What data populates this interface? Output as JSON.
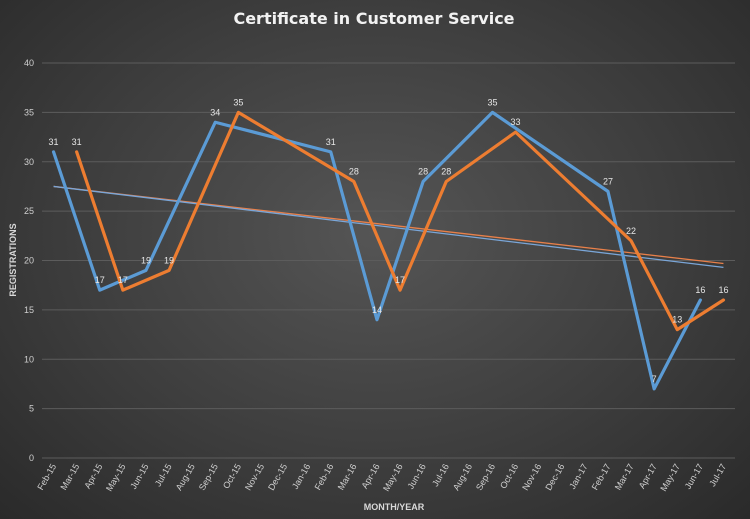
{
  "chart_data": {
    "type": "line",
    "title": "Certificate in Customer Service",
    "xlabel": "MONTH/YEAR",
    "ylabel": "REGISTRATIONS",
    "ylim": [
      0,
      40
    ],
    "yticks": [
      0,
      5,
      10,
      15,
      20,
      25,
      30,
      35,
      40
    ],
    "grid": true,
    "categories": [
      "Feb-15",
      "Mar-15",
      "Apr-15",
      "May-15",
      "Jun-15",
      "Jul-15",
      "Aug-15",
      "Sep-15",
      "Oct-15",
      "Nov-15",
      "Dec-15",
      "Jan-16",
      "Feb-16",
      "Mar-16",
      "Apr-16",
      "May-16",
      "Jun-16",
      "Jul-16",
      "Aug-16",
      "Sep-16",
      "Oct-16",
      "Nov-16",
      "Dec-16",
      "Jan-17",
      "Feb-17",
      "Mar-17",
      "Apr-17",
      "May-17",
      "Jun-17",
      "Jul-17"
    ],
    "series": [
      {
        "color": "#5b9bd5",
        "points": [
          [
            0,
            31
          ],
          [
            2,
            17
          ],
          [
            4,
            19
          ],
          [
            7,
            34
          ],
          [
            12,
            31
          ],
          [
            14,
            14
          ],
          [
            16,
            28
          ],
          [
            19,
            35
          ],
          [
            24,
            27
          ],
          [
            26,
            7
          ],
          [
            28,
            16
          ]
        ],
        "labels": [
          [
            0,
            31
          ],
          [
            2,
            17
          ],
          [
            4,
            19
          ],
          [
            7,
            34
          ],
          [
            12,
            31
          ],
          [
            14,
            14
          ],
          [
            16,
            28
          ],
          [
            19,
            35
          ],
          [
            24,
            27
          ],
          [
            26,
            7
          ],
          [
            28,
            16
          ]
        ]
      },
      {
        "color": "#ed7d31",
        "points": [
          [
            1,
            31
          ],
          [
            3,
            17
          ],
          [
            5,
            19
          ],
          [
            8,
            35
          ],
          [
            13,
            28
          ],
          [
            15,
            17
          ],
          [
            17,
            28
          ],
          [
            20,
            33
          ],
          [
            25,
            22
          ],
          [
            27,
            13
          ],
          [
            29,
            16
          ]
        ],
        "labels": [
          [
            1,
            31
          ],
          [
            3,
            17
          ],
          [
            5,
            19
          ],
          [
            8,
            35
          ],
          [
            13,
            28
          ],
          [
            15,
            17
          ],
          [
            17,
            28
          ],
          [
            20,
            33
          ],
          [
            25,
            22
          ],
          [
            27,
            13
          ],
          [
            29,
            16
          ]
        ]
      }
    ],
    "trendlines": [
      {
        "color": "#e8804a",
        "from": [
          0,
          27.5
        ],
        "to": [
          29,
          19.7
        ]
      },
      {
        "color": "#7aa6d8",
        "from": [
          0,
          27.5
        ],
        "to": [
          29,
          19.3
        ]
      }
    ]
  }
}
